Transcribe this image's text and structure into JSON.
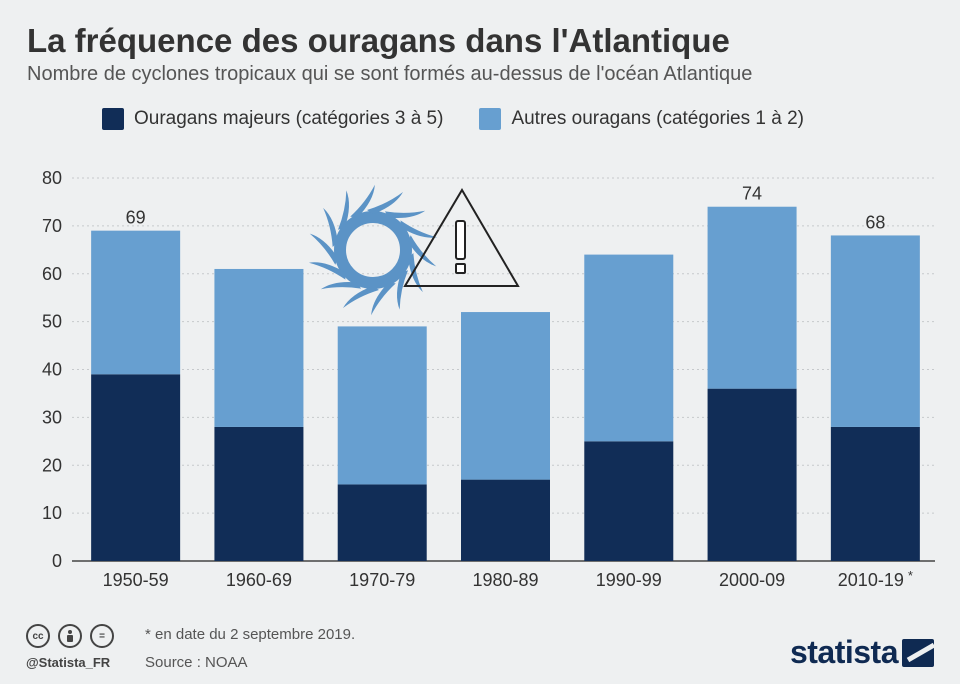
{
  "header": {
    "title": "La fréquence des ouragans dans l'Atlantique",
    "subtitle": "Nombre de cyclones tropicaux qui se sont formés au-dessus de l'océan Atlantique"
  },
  "colors": {
    "major": "#112d57",
    "other": "#679fd0",
    "icon": "#5b93c6"
  },
  "chart_data": {
    "type": "bar",
    "stacked": true,
    "categories": [
      "1950-59",
      "1960-69",
      "1970-79",
      "1980-89",
      "1990-99",
      "2000-09",
      "2010-19 *"
    ],
    "series": [
      {
        "name": "Ouragans majeurs (catégories 3 à 5)",
        "values": [
          39,
          28,
          16,
          17,
          25,
          36,
          28
        ]
      },
      {
        "name": "Autres ouragans (catégories 1 à 2)",
        "values": [
          30,
          33,
          33,
          35,
          39,
          38,
          40
        ]
      }
    ],
    "totals_labeled": {
      "1950-59": "69",
      "2000-09": "74",
      "2010-19 *": "68"
    },
    "ylim": [
      0,
      80
    ],
    "yticks": [
      0,
      10,
      20,
      30,
      40,
      50,
      60,
      70,
      80
    ],
    "grid": true,
    "legend_position": "top"
  },
  "icons": {
    "decoration": [
      "hurricane-icon",
      "warning-triangle-icon"
    ]
  },
  "footer": {
    "license_icons": [
      "cc",
      "by",
      "="
    ],
    "handle": "@Statista_FR",
    "footnote": "* en date du 2 septembre 2019.",
    "source": "Source : NOAA",
    "brand": "statista"
  }
}
